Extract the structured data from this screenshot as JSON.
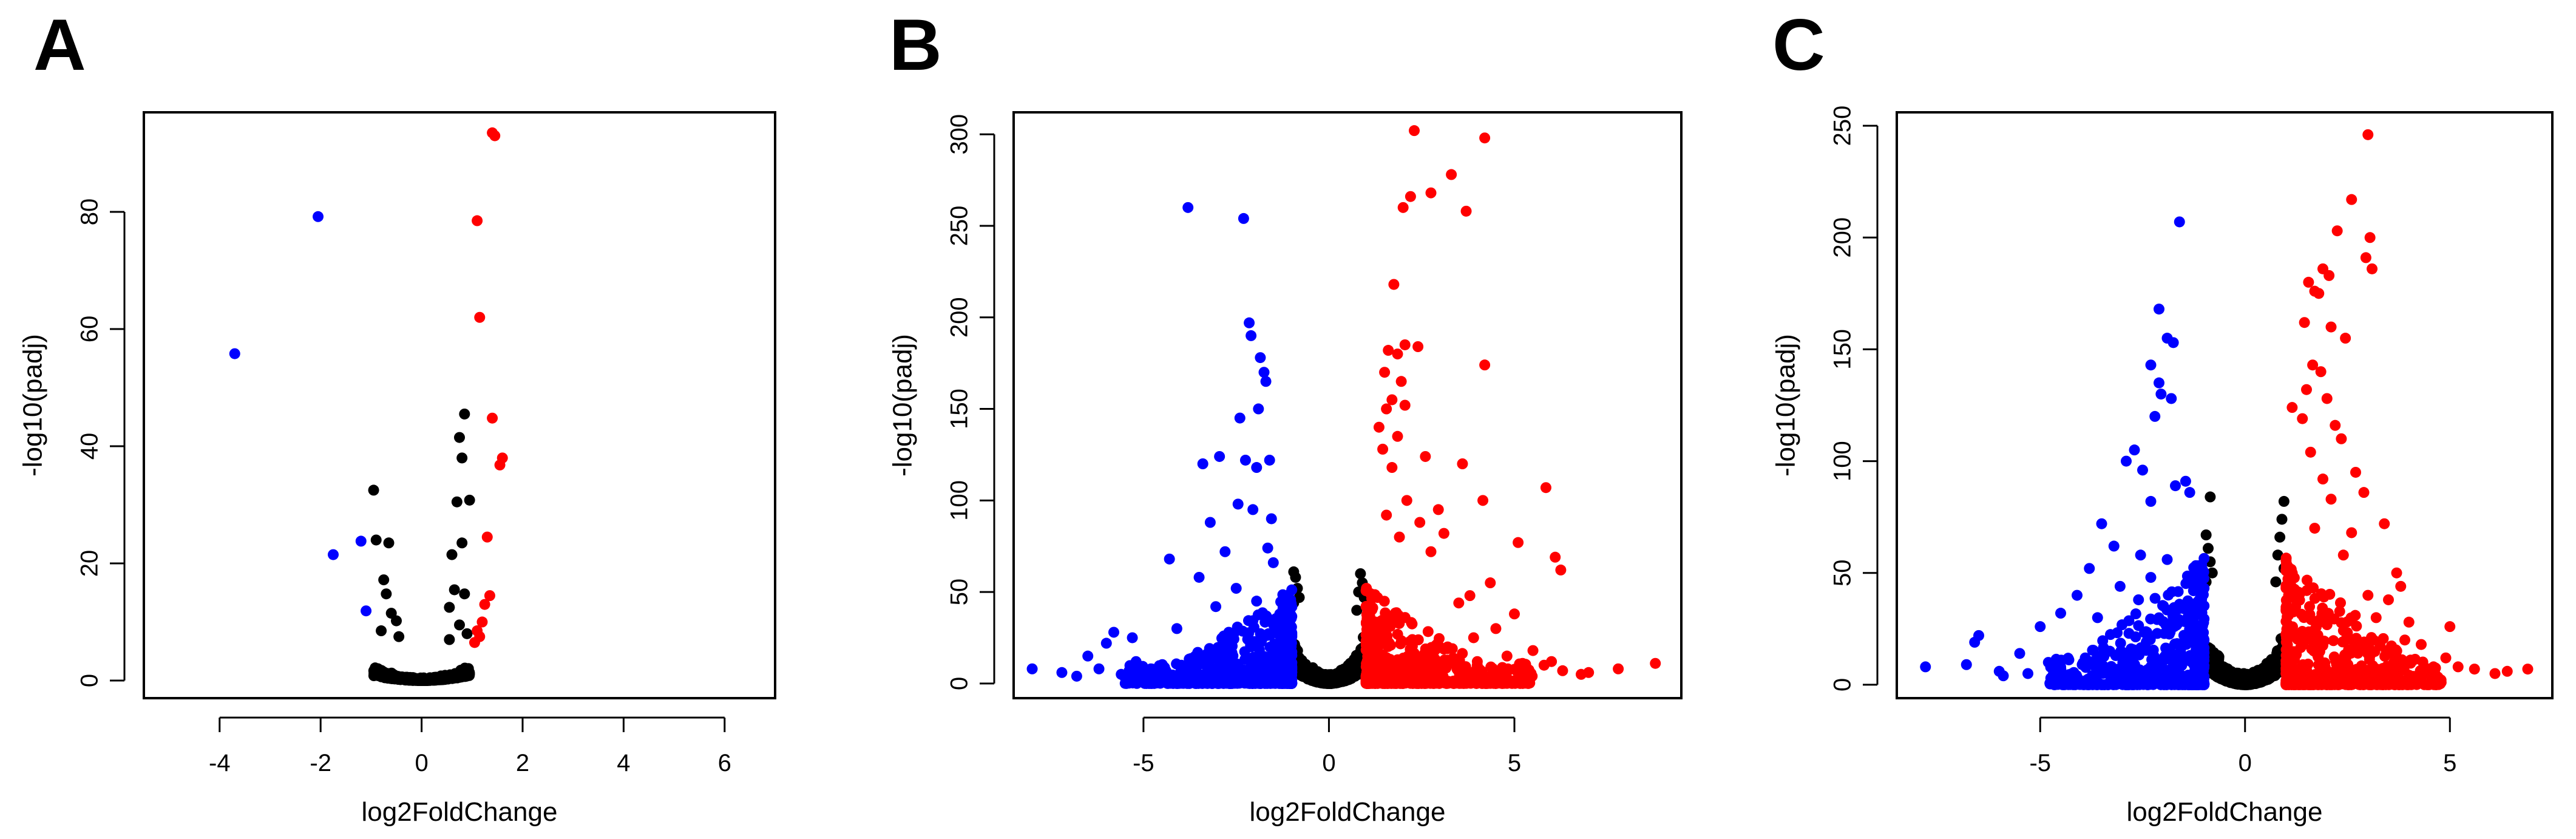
{
  "colors": {
    "down": "#0000ff",
    "up": "#ff0000",
    "ns": "#000000",
    "axis": "#000000"
  },
  "chart_data": [
    {
      "type": "scatter",
      "panel_label": "A",
      "xlabel": "log2FoldChange",
      "ylabel": "-log10(padj)",
      "xlim": [
        -5.5,
        7.0
      ],
      "ylim": [
        -3,
        97
      ],
      "xticks": [
        -4,
        -2,
        0,
        2,
        4,
        6
      ],
      "yticks": [
        0,
        20,
        40,
        60,
        80
      ],
      "grid": false,
      "ns_cloud": {
        "width": 1.0,
        "base": 0.5,
        "steepness": 3,
        "count": 500
      },
      "series": [
        {
          "group": "down",
          "points": [
            [
              -3.7,
              55.8
            ],
            [
              -2.05,
              79.2
            ],
            [
              -1.75,
              21.5
            ],
            [
              -1.2,
              23.8
            ],
            [
              -1.1,
              11.9
            ]
          ]
        },
        {
          "group": "up",
          "points": [
            [
              1.4,
              93.5
            ],
            [
              1.45,
              93.0
            ],
            [
              1.1,
              78.5
            ],
            [
              1.15,
              62.0
            ],
            [
              1.4,
              44.8
            ],
            [
              1.6,
              38.0
            ],
            [
              1.55,
              36.8
            ],
            [
              1.3,
              24.5
            ],
            [
              1.35,
              14.5
            ],
            [
              1.25,
              13.0
            ],
            [
              1.1,
              8.5
            ],
            [
              1.15,
              7.5
            ],
            [
              1.2,
              10.0
            ],
            [
              1.05,
              6.5
            ]
          ]
        },
        {
          "group": "ns",
          "points": [
            [
              -0.95,
              32.5
            ],
            [
              -0.9,
              24.0
            ],
            [
              -0.65,
              23.5
            ],
            [
              -0.75,
              17.2
            ],
            [
              -0.7,
              14.8
            ],
            [
              -0.6,
              11.5
            ],
            [
              -0.5,
              10.2
            ],
            [
              -0.8,
              8.5
            ],
            [
              -0.45,
              7.5
            ],
            [
              0.85,
              45.5
            ],
            [
              0.75,
              41.5
            ],
            [
              0.8,
              38.0
            ],
            [
              0.7,
              30.5
            ],
            [
              0.95,
              30.8
            ],
            [
              0.6,
              21.5
            ],
            [
              0.8,
              23.5
            ],
            [
              0.65,
              15.5
            ],
            [
              0.85,
              14.8
            ],
            [
              0.55,
              12.5
            ],
            [
              0.75,
              9.5
            ],
            [
              0.9,
              8.0
            ],
            [
              0.55,
              7.0
            ]
          ]
        }
      ]
    },
    {
      "type": "scatter",
      "panel_label": "B",
      "xlabel": "log2FoldChange",
      "ylabel": "-log10(padj)",
      "xlim": [
        -8.5,
        9.5
      ],
      "ylim": [
        -8,
        312
      ],
      "xticks": [
        -5,
        0,
        5
      ],
      "yticks": [
        0,
        50,
        100,
        150,
        200,
        250,
        300
      ],
      "grid": false,
      "ns_cloud": {
        "width": 1.0,
        "base": 5,
        "steepness": 25,
        "count": 1000
      },
      "series": [
        {
          "group": "down",
          "points": [
            [
              -3.8,
              260
            ],
            [
              -2.3,
              254
            ],
            [
              -2.15,
              197
            ],
            [
              -2.1,
              190
            ],
            [
              -1.85,
              178
            ],
            [
              -1.75,
              170
            ],
            [
              -1.7,
              165
            ],
            [
              -2.4,
              145
            ],
            [
              -1.9,
              150
            ],
            [
              -2.95,
              124
            ],
            [
              -3.4,
              120
            ],
            [
              -2.25,
              122
            ],
            [
              -1.6,
              122
            ],
            [
              -1.95,
              118
            ],
            [
              -2.45,
              98
            ],
            [
              -2.05,
              95
            ],
            [
              -3.2,
              88
            ],
            [
              -1.55,
              90
            ],
            [
              -2.8,
              72
            ],
            [
              -4.3,
              68
            ],
            [
              -1.65,
              74
            ],
            [
              -1.5,
              66
            ],
            [
              -3.5,
              58
            ],
            [
              -2.5,
              52
            ],
            [
              -1.95,
              45
            ],
            [
              -3.05,
              42
            ],
            [
              -1.8,
              38
            ],
            [
              -5.3,
              25
            ],
            [
              -4.1,
              30
            ],
            [
              -2.7,
              28
            ],
            [
              -6.0,
              22
            ],
            [
              -5.8,
              28
            ],
            [
              -6.5,
              15
            ],
            [
              -5.2,
              12
            ],
            [
              -4.5,
              10
            ],
            [
              -6.2,
              8
            ],
            [
              -7.2,
              6
            ],
            [
              -8.0,
              8
            ],
            [
              -5.0,
              5
            ],
            [
              -3.6,
              15
            ],
            [
              -4.8,
              8
            ],
            [
              -5.6,
              5
            ],
            [
              -6.8,
              4
            ]
          ]
        },
        {
          "group": "up",
          "points": [
            [
              2.3,
              302
            ],
            [
              4.2,
              298
            ],
            [
              3.3,
              278
            ],
            [
              2.75,
              268
            ],
            [
              2.2,
              266
            ],
            [
              2.0,
              260
            ],
            [
              3.7,
              258
            ],
            [
              1.75,
              218
            ],
            [
              2.05,
              185
            ],
            [
              1.6,
              182
            ],
            [
              1.85,
              180
            ],
            [
              2.4,
              184
            ],
            [
              1.5,
              170
            ],
            [
              1.95,
              165
            ],
            [
              4.2,
              174
            ],
            [
              1.7,
              155
            ],
            [
              2.05,
              152
            ],
            [
              1.55,
              150
            ],
            [
              1.35,
              140
            ],
            [
              1.85,
              135
            ],
            [
              1.45,
              128
            ],
            [
              2.6,
              124
            ],
            [
              1.7,
              118
            ],
            [
              3.6,
              120
            ],
            [
              5.85,
              107
            ],
            [
              2.1,
              100
            ],
            [
              2.95,
              95
            ],
            [
              4.15,
              100
            ],
            [
              1.55,
              92
            ],
            [
              2.45,
              88
            ],
            [
              3.1,
              82
            ],
            [
              5.1,
              77
            ],
            [
              1.9,
              80
            ],
            [
              2.75,
              72
            ],
            [
              6.1,
              69
            ],
            [
              4.35,
              55
            ],
            [
              6.25,
              62
            ],
            [
              3.8,
              48
            ],
            [
              3.5,
              44
            ],
            [
              5.0,
              38
            ],
            [
              4.5,
              30
            ],
            [
              3.9,
              25
            ],
            [
              5.5,
              18
            ],
            [
              4.8,
              15
            ],
            [
              5.8,
              10
            ],
            [
              6.3,
              7
            ],
            [
              7.0,
              6
            ],
            [
              6.8,
              5
            ],
            [
              7.8,
              8
            ],
            [
              8.8,
              11
            ],
            [
              4.0,
              12
            ],
            [
              3.2,
              20
            ],
            [
              6.0,
              12
            ],
            [
              5.3,
              8
            ],
            [
              4.6,
              6
            ]
          ]
        },
        {
          "group": "ns",
          "points": [
            [
              -0.95,
              61
            ],
            [
              -0.9,
              58
            ],
            [
              -0.85,
              52
            ],
            [
              -0.8,
              47
            ],
            [
              -0.95,
              44
            ],
            [
              0.85,
              60
            ],
            [
              0.9,
              55
            ],
            [
              0.8,
              50
            ],
            [
              0.95,
              47
            ],
            [
              0.75,
              40
            ]
          ]
        }
      ]
    },
    {
      "type": "scatter",
      "panel_label": "C",
      "xlabel": "log2FoldChange",
      "ylabel": "-log10(padj)",
      "xlim": [
        -8.5,
        7.5
      ],
      "ylim": [
        -6,
        256
      ],
      "xticks": [
        -5,
        0,
        5
      ],
      "yticks": [
        0,
        50,
        100,
        150,
        200,
        250
      ],
      "grid": false,
      "ns_cloud": {
        "width": 1.0,
        "base": 5,
        "steepness": 25,
        "count": 1000
      },
      "series": [
        {
          "group": "down",
          "points": [
            [
              -1.6,
              207
            ],
            [
              -2.1,
              168
            ],
            [
              -1.9,
              155
            ],
            [
              -1.75,
              153
            ],
            [
              -2.3,
              143
            ],
            [
              -2.1,
              135
            ],
            [
              -2.05,
              130
            ],
            [
              -1.8,
              128
            ],
            [
              -2.2,
              120
            ],
            [
              -2.7,
              105
            ],
            [
              -2.9,
              100
            ],
            [
              -2.5,
              96
            ],
            [
              -1.45,
              91
            ],
            [
              -1.7,
              89
            ],
            [
              -2.3,
              82
            ],
            [
              -1.35,
              86
            ],
            [
              -3.5,
              72
            ],
            [
              -3.2,
              62
            ],
            [
              -2.55,
              58
            ],
            [
              -1.9,
              56
            ],
            [
              -3.8,
              52
            ],
            [
              -2.3,
              48
            ],
            [
              -3.05,
              44
            ],
            [
              -4.1,
              40
            ],
            [
              -2.6,
              38
            ],
            [
              -1.6,
              36
            ],
            [
              -4.5,
              32
            ],
            [
              -3.6,
              30
            ],
            [
              -5.0,
              26
            ],
            [
              -6.5,
              22
            ],
            [
              -6.6,
              19
            ],
            [
              -5.5,
              14
            ],
            [
              -4.8,
              10
            ],
            [
              -6.0,
              6
            ],
            [
              -7.8,
              8
            ],
            [
              -5.9,
              4
            ],
            [
              -5.3,
              5
            ],
            [
              -4.5,
              8
            ],
            [
              -3.9,
              12
            ],
            [
              -3.3,
              15
            ],
            [
              -6.8,
              9
            ]
          ]
        },
        {
          "group": "up",
          "points": [
            [
              3.0,
              246
            ],
            [
              2.6,
              217
            ],
            [
              3.05,
              200
            ],
            [
              2.25,
              203
            ],
            [
              1.9,
              186
            ],
            [
              2.05,
              183
            ],
            [
              3.1,
              186
            ],
            [
              2.95,
              191
            ],
            [
              1.55,
              180
            ],
            [
              1.7,
              176
            ],
            [
              1.8,
              175
            ],
            [
              1.45,
              162
            ],
            [
              2.1,
              160
            ],
            [
              2.45,
              155
            ],
            [
              1.65,
              143
            ],
            [
              1.85,
              140
            ],
            [
              1.5,
              132
            ],
            [
              2.0,
              128
            ],
            [
              1.15,
              124
            ],
            [
              1.4,
              119
            ],
            [
              2.2,
              116
            ],
            [
              2.35,
              110
            ],
            [
              1.6,
              104
            ],
            [
              2.7,
              95
            ],
            [
              1.9,
              92
            ],
            [
              2.9,
              86
            ],
            [
              2.1,
              83
            ],
            [
              3.4,
              72
            ],
            [
              1.7,
              70
            ],
            [
              2.6,
              68
            ],
            [
              3.7,
              50
            ],
            [
              3.8,
              44
            ],
            [
              4.1,
              11
            ],
            [
              3.5,
              38
            ],
            [
              3.2,
              30
            ],
            [
              4.0,
              28
            ],
            [
              4.3,
              18
            ],
            [
              5.0,
              26
            ],
            [
              4.9,
              12
            ],
            [
              5.2,
              8
            ],
            [
              5.6,
              7
            ],
            [
              6.1,
              5
            ],
            [
              6.4,
              6
            ],
            [
              6.9,
              7
            ],
            [
              4.6,
              8
            ],
            [
              3.9,
              20
            ],
            [
              3.0,
              40
            ],
            [
              2.4,
              58
            ]
          ]
        },
        {
          "group": "ns",
          "points": [
            [
              -0.95,
              67
            ],
            [
              -0.9,
              61
            ],
            [
              -0.85,
              55
            ],
            [
              -0.8,
              50
            ],
            [
              -0.95,
              46
            ],
            [
              -0.85,
              84
            ],
            [
              0.95,
              82
            ],
            [
              0.9,
              74
            ],
            [
              0.85,
              66
            ],
            [
              0.8,
              58
            ],
            [
              0.95,
              52
            ],
            [
              0.75,
              46
            ]
          ]
        }
      ]
    }
  ]
}
